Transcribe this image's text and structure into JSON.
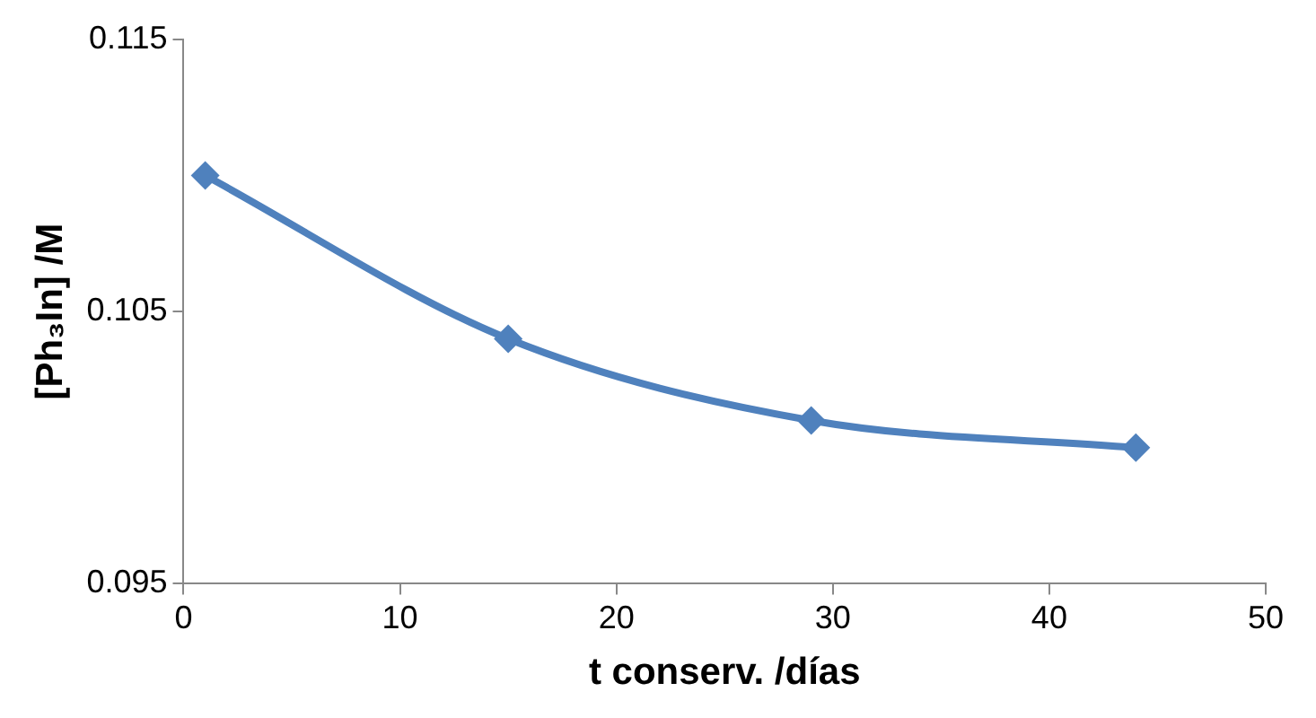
{
  "chart_data": {
    "type": "line",
    "xlabel": "t conserv. /días",
    "ylabel": "[Ph₃In] /M",
    "x": [
      1,
      15,
      29,
      44
    ],
    "series": [
      {
        "color": "#4f81bd",
        "values": [
          0.11,
          0.104,
          0.101,
          0.1
        ]
      }
    ],
    "xlim": [
      0,
      50
    ],
    "xticks": [
      0,
      10,
      20,
      30,
      40,
      50
    ],
    "ylim": [
      0.095,
      0.115
    ],
    "yticks": [
      0.095,
      0.105,
      0.115
    ],
    "grid": false,
    "marker": "diamond",
    "line_style": "solid"
  }
}
